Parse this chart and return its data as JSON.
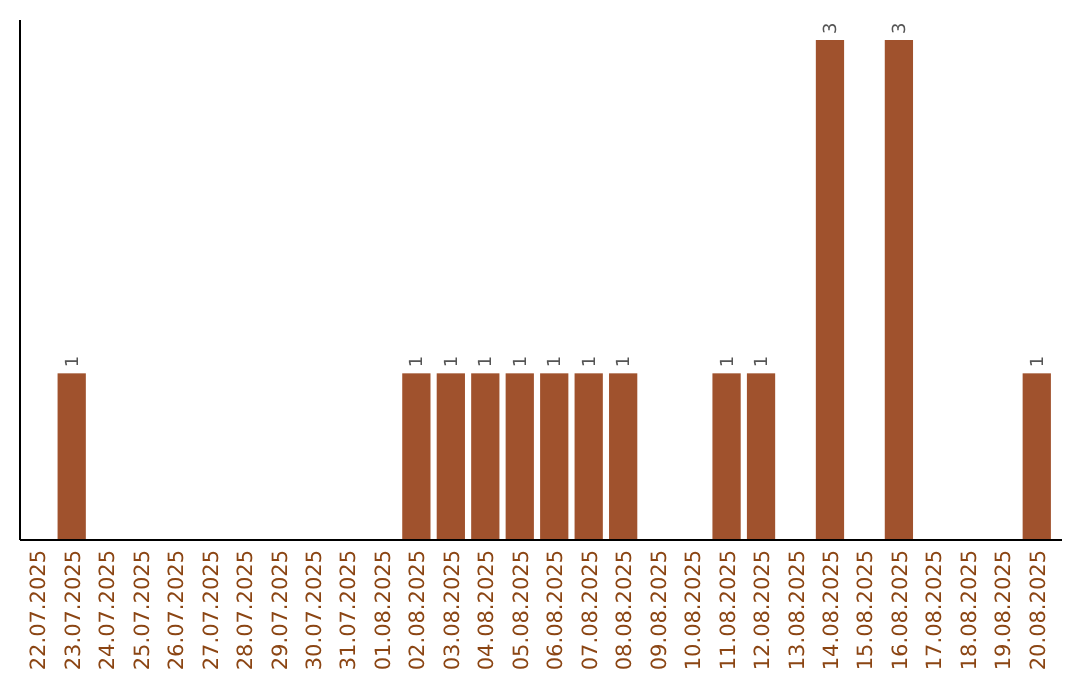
{
  "chart_data": {
    "type": "bar",
    "categories": [
      "22.07.2025",
      "23.07.2025",
      "24.07.2025",
      "25.07.2025",
      "26.07.2025",
      "27.07.2025",
      "28.07.2025",
      "29.07.2025",
      "30.07.2025",
      "31.07.2025",
      "01.08.2025",
      "02.08.2025",
      "03.08.2025",
      "04.08.2025",
      "05.08.2025",
      "06.08.2025",
      "07.08.2025",
      "08.08.2025",
      "09.08.2025",
      "10.08.2025",
      "11.08.2025",
      "12.08.2025",
      "13.08.2025",
      "14.08.2025",
      "15.08.2025",
      "16.08.2025",
      "17.08.2025",
      "18.08.2025",
      "19.08.2025",
      "20.08.2025"
    ],
    "values": [
      0,
      1,
      0,
      0,
      0,
      0,
      0,
      0,
      0,
      0,
      0,
      1,
      1,
      1,
      1,
      1,
      1,
      1,
      0,
      0,
      1,
      1,
      0,
      3,
      0,
      3,
      0,
      0,
      0,
      1
    ],
    "value_labels": [
      null,
      "1",
      null,
      null,
      null,
      null,
      null,
      null,
      null,
      null,
      null,
      "1",
      "1",
      "1",
      "1",
      "1",
      "1",
      "1",
      null,
      null,
      "1",
      "1",
      null,
      "3",
      null,
      "3",
      null,
      null,
      null,
      "1"
    ],
    "color": "#a0522d",
    "tick_labels": "x"
  }
}
